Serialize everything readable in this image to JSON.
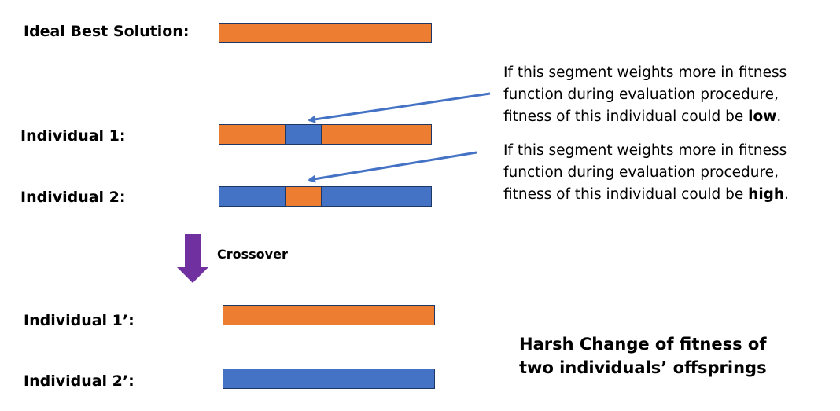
{
  "colors": {
    "orange": "#ed7d31",
    "blue": "#4472c4",
    "purple": "#7030a0",
    "arrow_blue": "#4472c4"
  },
  "labels": {
    "ideal": "Ideal Best Solution:",
    "ind1": "Individual 1:",
    "ind2": "Individual 2:",
    "off1": "Individual 1’:",
    "off2": "Individual 2’:",
    "crossover": "Crossover"
  },
  "note1": {
    "line1": "If this segment weights more in fitness",
    "line2": "function during evaluation procedure,",
    "line3_prefix": "fitness of this individual could be ",
    "line3_emph": "low",
    "line3_suffix": "."
  },
  "note2": {
    "line1": "If this segment weights more in fitness",
    "line2": "function during evaluation procedure,",
    "line3_prefix": "fitness of this individual could be ",
    "line3_emph": "high",
    "line3_suffix": "."
  },
  "conclusion": {
    "line1": "Harsh Change of fitness of",
    "line2": "two individuals’ offsprings"
  },
  "chromosomes": {
    "ideal": [
      "orange"
    ],
    "ind1": [
      "orange",
      "blue",
      "orange"
    ],
    "ind2": [
      "blue",
      "orange",
      "blue"
    ],
    "off1": [
      "orange"
    ],
    "off2": [
      "blue"
    ]
  }
}
